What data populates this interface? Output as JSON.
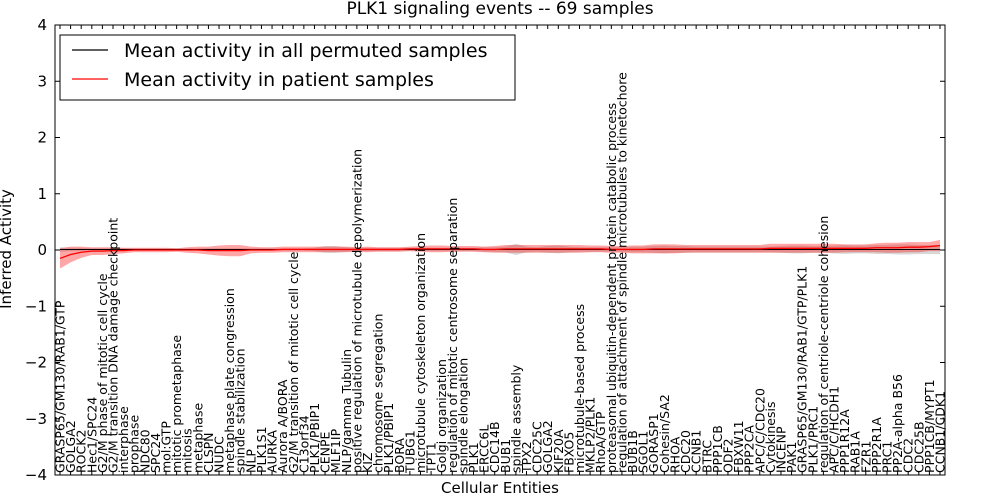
{
  "chart_data": {
    "type": "line",
    "title": "PLK1 signaling events -- 69 samples",
    "xlabel": "Cellular Entities",
    "ylabel": "Inferred Activity",
    "ylim": [
      -4,
      4
    ],
    "yticks": [
      -4,
      -3,
      -2,
      -1,
      0,
      1,
      2,
      3,
      4
    ],
    "legend": {
      "position": "top-left",
      "entries": [
        {
          "name": "Mean activity in all permuted samples",
          "color": "#000000"
        },
        {
          "name": "Mean activity in patient samples",
          "color": "#ff0000"
        }
      ]
    },
    "categories": [
      "GRASP65/GM130/RAB1/GTP",
      "GOLGA2",
      "ROCK2",
      "Hec1/SPC24",
      "G2/M phase of mitotic cell cycle",
      "G2/M transition DNA damage checkpoint",
      "interphase",
      "prophase",
      "NDC80",
      "SPC24",
      "mol:GTP",
      "mitotic prometaphase",
      "mitosis",
      "metaphase",
      "CLSPN",
      "NUDC",
      "metaphase plate congression",
      "spindle stabilization",
      "NLP",
      "PLK1S1",
      "AURKA",
      "Aurora A/BORA",
      "G2/M transition of mitotic cell cycle",
      "C13orf34",
      "PLK1/PBIP1",
      "CENPE",
      "MLF1IP",
      "NLP/gamma Tubulin",
      "positive regulation of microtubule depolymerization",
      "KIZ",
      "chromosome segregation",
      "PLK1/PBIP1",
      "BORA",
      "TUBG1",
      "microtubule cytoskeleton organization",
      "TPT1",
      "Golgi organization",
      "regulation of mitotic centrosome separation",
      "spindle elongation",
      "PLK1",
      "ERCC6L",
      "CDC14B",
      "BUB1",
      "spindle assembly",
      "TPX2",
      "CDC25C",
      "GOLGA2",
      "KIF20A",
      "FBXO5",
      "microtubule-based process",
      "MKLP2/PLK1",
      "RhoA/GTP",
      "proteasomal ubiquitin-dependent protein catabolic process",
      "regulation of attachment of spindle microtubules to kinetochore",
      "BUB1B",
      "SGOL1",
      "GORASP1",
      "Cohesin/SA2",
      "RHOA",
      "CDC20",
      "CCNB1",
      "BTRC",
      "PPP1CB",
      "ODF2",
      "FBXW11",
      "PPP2CA",
      "APC/C/CDC20",
      "Cytokinesis",
      "INCENP",
      "PAK1",
      "GRASP65/GM130/RAB1/GTP/PLK1",
      "PLK1/PRC1",
      "regulation of centriole-centriole cohesion",
      "APC/C/HCDH1",
      "PPP1R12A",
      "RAB1A",
      "FZR1",
      "PPP2R1A",
      "PRC1",
      "PP2A-alpha B56",
      "CDC2",
      "CDC25B",
      "PPP1CB/MYPT1",
      "CCNB1/CDK1"
    ],
    "series": [
      {
        "name": "Mean activity in patient samples",
        "color": "#ff0000",
        "values": [
          -0.15,
          -0.08,
          -0.04,
          -0.02,
          -0.02,
          -0.01,
          -0.01,
          0,
          0,
          0,
          0,
          0,
          0,
          0,
          -0.01,
          -0.01,
          -0.01,
          -0.01,
          0,
          0,
          0,
          0.01,
          0.01,
          0.01,
          0.01,
          0.01,
          0.01,
          0.01,
          0.01,
          0.01,
          0.01,
          0.01,
          0.01,
          0.02,
          0.02,
          0.02,
          0.02,
          0.02,
          0.02,
          0.02,
          0.01,
          0.01,
          0.02,
          0.02,
          0.02,
          0.02,
          0.02,
          0.02,
          0.02,
          0.02,
          0.02,
          0.02,
          0.01,
          0.01,
          0.01,
          0.01,
          0.02,
          0.02,
          0.02,
          0.02,
          0.02,
          0.02,
          0.02,
          0.02,
          0.02,
          0.02,
          0.02,
          0.03,
          0.03,
          0.03,
          0.03,
          0.03,
          0.03,
          0.03,
          0.03,
          0.03,
          0.03,
          0.04,
          0.04,
          0.04,
          0.05,
          0.05,
          0.06,
          0.08
        ],
        "band": [
          0.18,
          0.14,
          0.1,
          0.07,
          0.07,
          0.06,
          0.05,
          0.04,
          0.04,
          0.04,
          0.04,
          0.03,
          0.05,
          0.06,
          0.07,
          0.09,
          0.1,
          0.1,
          0.06,
          0.05,
          0.05,
          0.05,
          0.05,
          0.05,
          0.05,
          0.05,
          0.05,
          0.05,
          0.04,
          0.05,
          0.04,
          0.04,
          0.04,
          0.04,
          0.05,
          0.06,
          0.06,
          0.05,
          0.05,
          0.05,
          0.05,
          0.06,
          0.07,
          0.07,
          0.07,
          0.07,
          0.07,
          0.07,
          0.07,
          0.07,
          0.06,
          0.06,
          0.06,
          0.06,
          0.07,
          0.07,
          0.08,
          0.08,
          0.08,
          0.07,
          0.07,
          0.07,
          0.07,
          0.07,
          0.07,
          0.07,
          0.07,
          0.08,
          0.08,
          0.08,
          0.08,
          0.08,
          0.08,
          0.08,
          0.07,
          0.07,
          0.07,
          0.08,
          0.09,
          0.09,
          0.09,
          0.09,
          0.08,
          0.1
        ]
      },
      {
        "name": "Mean activity in all permuted samples",
        "color": "#000000",
        "values": [
          0.01,
          0.01,
          0.01,
          0.01,
          0.01,
          0.01,
          0.01,
          0.01,
          0.01,
          0.01,
          0.01,
          0.01,
          0.01,
          0.01,
          0.01,
          0.01,
          0.01,
          0.01,
          0.01,
          0.01,
          0.01,
          0.01,
          0.01,
          0.01,
          0.01,
          0.01,
          0.01,
          0.01,
          0.01,
          0.01,
          0.01,
          0.01,
          0.01,
          0.01,
          0.01,
          0.01,
          0.01,
          0.01,
          0.01,
          0.01,
          0.01,
          0.01,
          0.01,
          0.01,
          0.01,
          0.01,
          0.01,
          0.01,
          0.01,
          0.01,
          0.01,
          0.01,
          0.01,
          0.01,
          0.01,
          0.01,
          0.01,
          0.01,
          0.01,
          0.01,
          0.01,
          0.01,
          0.01,
          0.01,
          0.01,
          0.01,
          0.01,
          0.01,
          0.01,
          0.01,
          0.01,
          0.01,
          0.01,
          0.01,
          0.01,
          0.01,
          0.01,
          0.01,
          0.01,
          0.01,
          0.01,
          0.01,
          0.01,
          0.01
        ],
        "band": [
          0.04,
          0.03,
          0.03,
          0.02,
          0.02,
          0.02,
          0.02,
          0.02,
          0.02,
          0.02,
          0.02,
          0.02,
          0.02,
          0.02,
          0.02,
          0.02,
          0.02,
          0.02,
          0.02,
          0.02,
          0.02,
          0.02,
          0.02,
          0.02,
          0.03,
          0.06,
          0.06,
          0.04,
          0.03,
          0.03,
          0.03,
          0.03,
          0.03,
          0.03,
          0.03,
          0.03,
          0.03,
          0.03,
          0.03,
          0.03,
          0.04,
          0.04,
          0.05,
          0.1,
          0.05,
          0.04,
          0.06,
          0.07,
          0.05,
          0.04,
          0.04,
          0.04,
          0.04,
          0.04,
          0.05,
          0.05,
          0.06,
          0.07,
          0.06,
          0.06,
          0.05,
          0.05,
          0.05,
          0.05,
          0.05,
          0.05,
          0.05,
          0.05,
          0.06,
          0.07,
          0.07,
          0.06,
          0.06,
          0.07,
          0.08,
          0.07,
          0.07,
          0.08,
          0.08,
          0.09,
          0.09,
          0.08,
          0.08,
          0.08
        ]
      }
    ]
  }
}
